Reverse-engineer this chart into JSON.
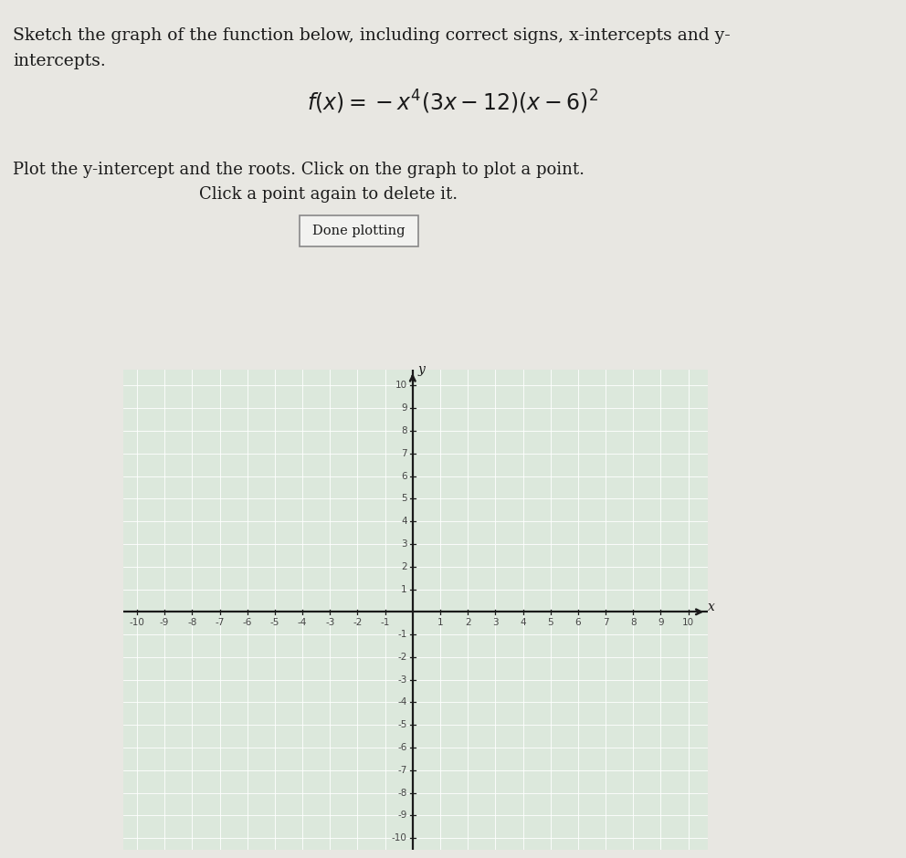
{
  "title_line1": "Sketch the graph of the function below, including correct signs, x-intercepts and y-",
  "title_line2": "intercepts.",
  "formula_latex": "$f(x) = -x^4(3x - 12)(x - 6)^2$",
  "instruction_line1": "Plot the y-intercept and the roots. Click on the graph to plot a point.",
  "instruction_line2": "Click a point again to delete it.",
  "button_text": "Done plotting",
  "xlabel": "x",
  "ylabel": "y",
  "xlim": [
    -10,
    10
  ],
  "ylim": [
    -10,
    10
  ],
  "page_bg": "#e8e7e2",
  "grid_bg": "#dce8dc",
  "grid_color": "#ffffff",
  "axis_color": "#1a1a1a",
  "text_color": "#1a1a1a",
  "button_bg": "#f2f2f0",
  "button_border": "#888888",
  "tick_label_color": "#444444",
  "tick_fontsize": 7.5,
  "title_fontsize": 13.5,
  "formula_fontsize": 17,
  "instruction_fontsize": 13,
  "button_fontsize": 10.5,
  "axis_label_fontsize": 10
}
